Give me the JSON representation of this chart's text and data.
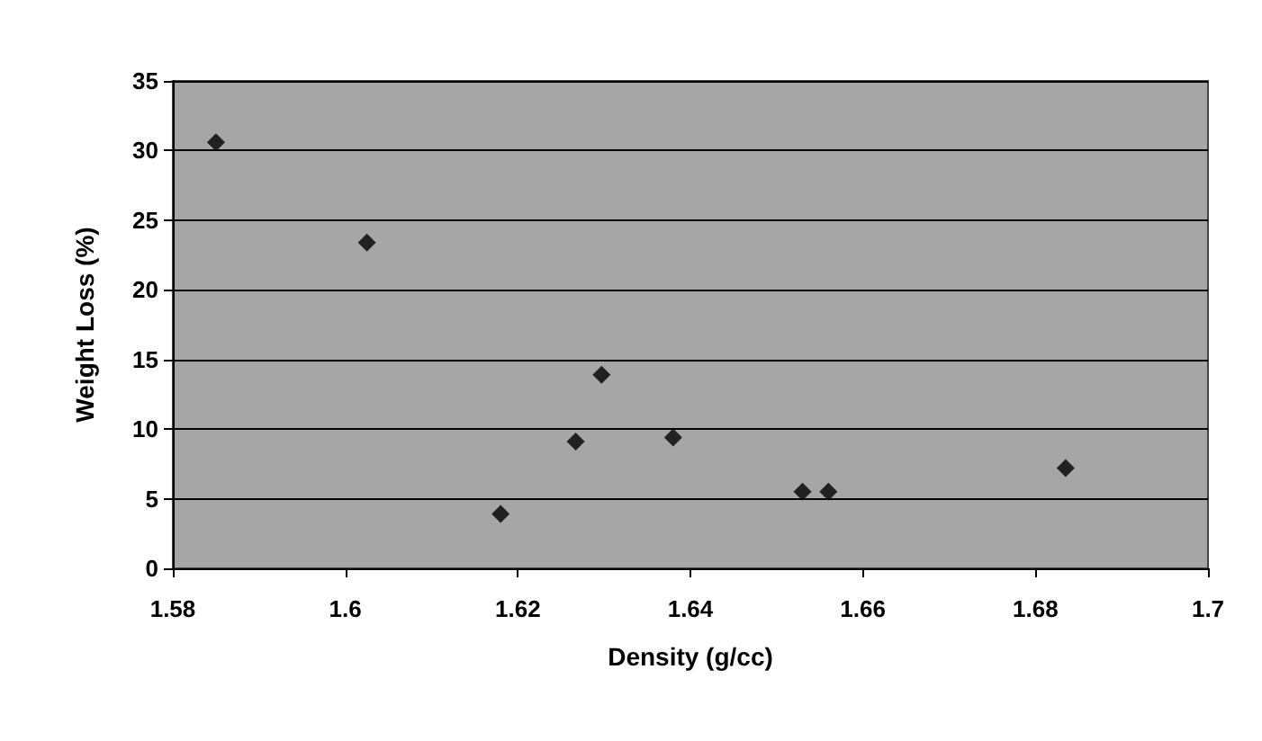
{
  "chart_data": {
    "type": "scatter",
    "xlabel": "Density (g/cc)",
    "ylabel": "Weight Loss (%)",
    "x": [
      1.585,
      1.6025,
      1.618,
      1.6267,
      1.6297,
      1.638,
      1.653,
      1.656,
      1.6835
    ],
    "values": [
      30.6,
      23.4,
      3.9,
      9.1,
      13.9,
      9.4,
      5.5,
      5.5,
      7.2
    ],
    "color": "#000000",
    "marker": "diamond",
    "xlim": [
      1.58,
      1.7
    ],
    "xticks": [
      1.58,
      1.6,
      1.62,
      1.64,
      1.66,
      1.68,
      1.7
    ],
    "ylim": [
      0,
      35
    ],
    "yticks": [
      0,
      5,
      10,
      15,
      20,
      25,
      30,
      35
    ],
    "grid": "y"
  }
}
